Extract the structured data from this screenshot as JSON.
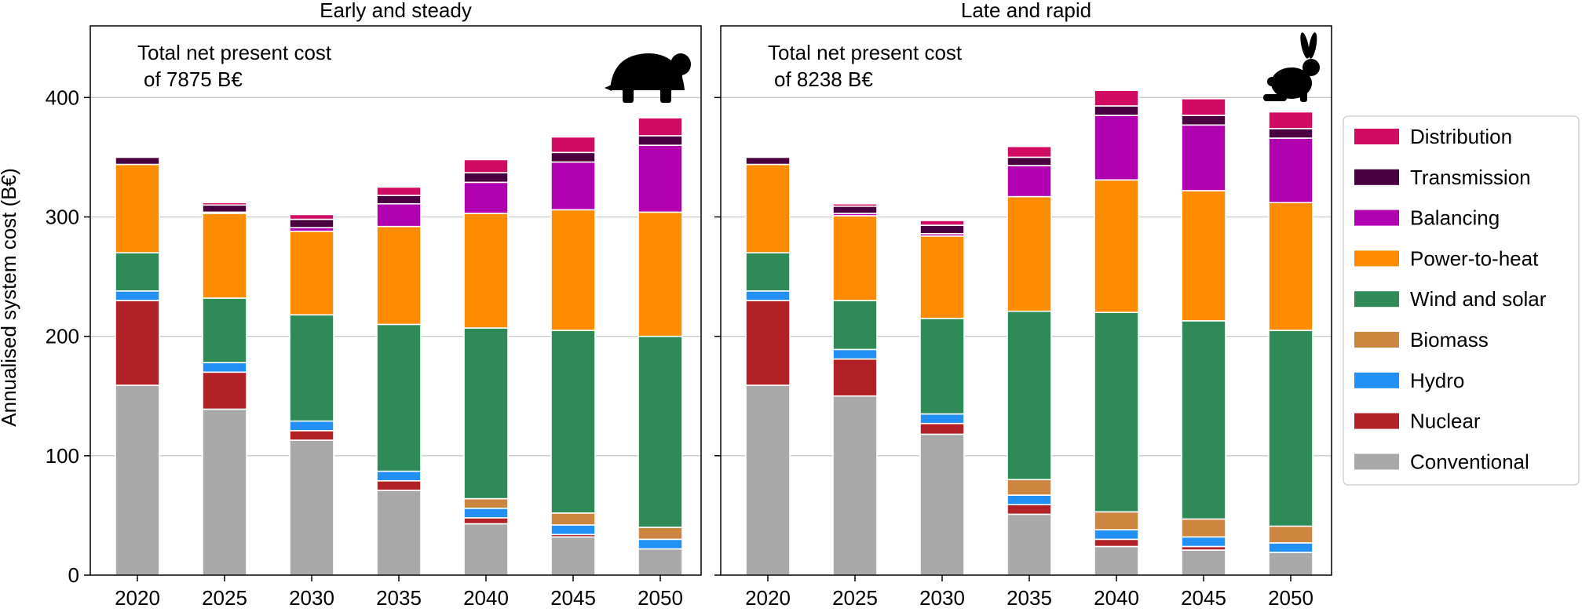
{
  "colors": {
    "Conventional": "#a9a9a9",
    "Nuclear": "#b22125",
    "Hydro": "#2290f4",
    "Biomass": "#cd853f",
    "Wind and solar": "#2e8b57",
    "Power-to-heat": "#ff8c00",
    "Balancing": "#b000b0",
    "Transmission": "#4a0040",
    "Distribution": "#d10a64"
  },
  "chart_data": {
    "type": "bar",
    "stacked": true,
    "ylabel": "Annualised system cost (B€)",
    "ylim": [
      0,
      460
    ],
    "yticks": [
      0,
      100,
      200,
      300,
      400
    ],
    "grid": "horizontal",
    "legend_position": "right",
    "stack_order": [
      "Conventional",
      "Nuclear",
      "Hydro",
      "Biomass",
      "Wind and solar",
      "Power-to-heat",
      "Balancing",
      "Transmission",
      "Distribution"
    ],
    "legend_order": [
      "Distribution",
      "Transmission",
      "Balancing",
      "Power-to-heat",
      "Wind and solar",
      "Biomass",
      "Hydro",
      "Nuclear",
      "Conventional"
    ],
    "categories": [
      "2020",
      "2025",
      "2030",
      "2035",
      "2040",
      "2045",
      "2050"
    ],
    "panels": [
      {
        "title": "Early and steady",
        "annotation_line1": "Total net present cost",
        "annotation_line2": "of 7875 B€",
        "icon": "turtle-icon",
        "series": [
          {
            "name": "Conventional",
            "values": [
              159,
              139,
              113,
              71,
              43,
              32,
              22
            ]
          },
          {
            "name": "Nuclear",
            "values": [
              71,
              31,
              8,
              8,
              5,
              2,
              0
            ]
          },
          {
            "name": "Hydro",
            "values": [
              8,
              8,
              8,
              8,
              8,
              8,
              8
            ]
          },
          {
            "name": "Biomass",
            "values": [
              0,
              0,
              0,
              0,
              8,
              10,
              10
            ]
          },
          {
            "name": "Wind and solar",
            "values": [
              32,
              54,
              89,
              123,
              143,
              153,
              160
            ]
          },
          {
            "name": "Power-to-heat",
            "values": [
              74,
              71,
              70,
              82,
              96,
              101,
              104
            ]
          },
          {
            "name": "Balancing",
            "values": [
              0,
              1,
              3,
              19,
              26,
              40,
              56
            ]
          },
          {
            "name": "Transmission",
            "values": [
              6,
              6,
              7,
              7,
              8,
              8,
              8
            ]
          },
          {
            "name": "Distribution",
            "values": [
              1,
              2,
              4,
              7,
              11,
              13,
              15
            ]
          }
        ]
      },
      {
        "title": "Late and rapid",
        "annotation_line1": "Total net present cost",
        "annotation_line2": "of 8238 B€",
        "icon": "rabbit-icon",
        "series": [
          {
            "name": "Conventional",
            "values": [
              159,
              150,
              118,
              51,
              24,
              21,
              19
            ]
          },
          {
            "name": "Nuclear",
            "values": [
              71,
              31,
              9,
              8,
              6,
              3,
              0
            ]
          },
          {
            "name": "Hydro",
            "values": [
              8,
              8,
              8,
              8,
              8,
              8,
              8
            ]
          },
          {
            "name": "Biomass",
            "values": [
              0,
              0,
              0,
              13,
              15,
              15,
              14
            ]
          },
          {
            "name": "Wind and solar",
            "values": [
              32,
              41,
              80,
              141,
              167,
              166,
              164
            ]
          },
          {
            "name": "Power-to-heat",
            "values": [
              74,
              71,
              69,
              96,
              111,
              109,
              107
            ]
          },
          {
            "name": "Balancing",
            "values": [
              0,
              2,
              2,
              26,
              54,
              55,
              54
            ]
          },
          {
            "name": "Transmission",
            "values": [
              6,
              6,
              7,
              7,
              8,
              8,
              8
            ]
          },
          {
            "name": "Distribution",
            "values": [
              1,
              2,
              4,
              9,
              13,
              14,
              14
            ]
          }
        ]
      }
    ]
  }
}
